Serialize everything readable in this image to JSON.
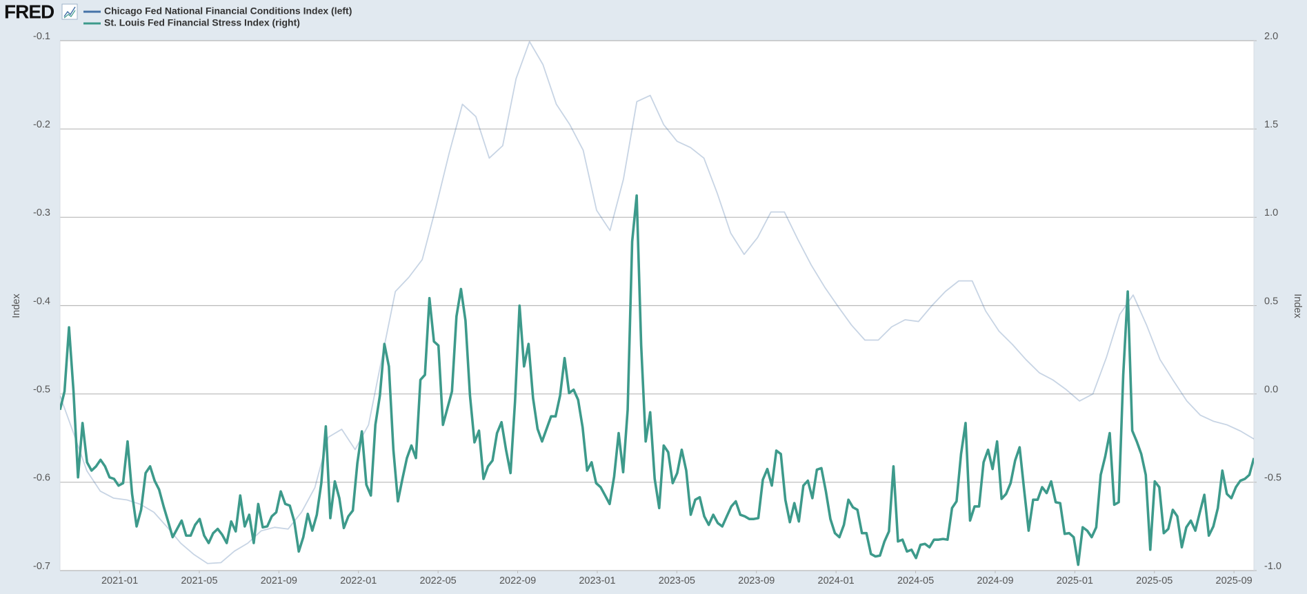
{
  "logo": "FRED",
  "chart_data": {
    "type": "line",
    "legend": "top-left",
    "y_label": "Index",
    "y2_label": "Index",
    "grid": true,
    "xlim": [
      "2020-10",
      "2025-10"
    ],
    "xticks": [
      "2021-01",
      "2021-05",
      "2021-09",
      "2022-01",
      "2022-05",
      "2022-09",
      "2023-01",
      "2023-05",
      "2023-09",
      "2024-01",
      "2024-05",
      "2024-09",
      "2025-01",
      "2025-05",
      "2025-09"
    ],
    "ylim": [
      -0.7,
      -0.1
    ],
    "yticks": [
      -0.7,
      -0.6,
      -0.5,
      -0.4,
      -0.3,
      -0.2,
      -0.1
    ],
    "y2lim": [
      -1.0,
      2.0
    ],
    "y2ticks": [
      {
        "value": -1.0,
        "label": "-1.0"
      },
      {
        "value": -0.5,
        "label": "-0.5"
      },
      {
        "value": 0.0,
        "label": "0.0"
      },
      {
        "value": 0.5,
        "label": "0.5"
      },
      {
        "value": 1.0,
        "label": "1.0"
      },
      {
        "value": 1.5,
        "label": "1.5"
      },
      {
        "value": 2.0,
        "label": "2.0"
      }
    ],
    "series": [
      {
        "name": "Chicago Fed National Financial Conditions Index (left)",
        "color": "#4572a7",
        "axis": "y",
        "values": [
          -0.502,
          -0.544,
          -0.587,
          -0.61,
          -0.618,
          -0.62,
          -0.625,
          -0.634,
          -0.651,
          -0.669,
          -0.682,
          -0.692,
          -0.691,
          -0.678,
          -0.669,
          -0.655,
          -0.651,
          -0.653,
          -0.634,
          -0.606,
          -0.549,
          -0.54,
          -0.563,
          -0.535,
          -0.459,
          -0.384,
          -0.368,
          -0.348,
          -0.29,
          -0.228,
          -0.172,
          -0.186,
          -0.233,
          -0.219,
          -0.143,
          -0.101,
          -0.127,
          -0.172,
          -0.195,
          -0.224,
          -0.292,
          -0.315,
          -0.257,
          -0.169,
          -0.162,
          -0.195,
          -0.214,
          -0.221,
          -0.233,
          -0.273,
          -0.318,
          -0.342,
          -0.323,
          -0.294,
          -0.294,
          -0.325,
          -0.354,
          -0.379,
          -0.401,
          -0.422,
          -0.439,
          -0.439,
          -0.424,
          -0.416,
          -0.418,
          -0.4,
          -0.384,
          -0.372,
          -0.372,
          -0.406,
          -0.429,
          -0.444,
          -0.461,
          -0.476,
          -0.484,
          -0.495,
          -0.508,
          -0.5,
          -0.459,
          -0.41,
          -0.388,
          -0.422,
          -0.461,
          -0.485,
          -0.508,
          -0.524,
          -0.531,
          -0.535,
          -0.542,
          -0.551
        ]
      },
      {
        "name": "St. Louis Fed Financial Stress Index (right)",
        "color": "#3d9a8b",
        "axis": "y2",
        "values": [
          -0.09,
          0.014,
          0.377,
          0.014,
          -0.472,
          -0.165,
          -0.387,
          -0.434,
          -0.41,
          -0.373,
          -0.41,
          -0.472,
          -0.481,
          -0.519,
          -0.505,
          -0.269,
          -0.566,
          -0.75,
          -0.656,
          -0.448,
          -0.41,
          -0.491,
          -0.542,
          -0.637,
          -0.722,
          -0.811,
          -0.764,
          -0.717,
          -0.802,
          -0.802,
          -0.741,
          -0.708,
          -0.802,
          -0.844,
          -0.788,
          -0.764,
          -0.797,
          -0.844,
          -0.722,
          -0.778,
          -0.575,
          -0.75,
          -0.684,
          -0.844,
          -0.623,
          -0.755,
          -0.75,
          -0.693,
          -0.67,
          -0.552,
          -0.623,
          -0.632,
          -0.722,
          -0.892,
          -0.811,
          -0.679,
          -0.774,
          -0.684,
          -0.505,
          -0.184,
          -0.703,
          -0.495,
          -0.59,
          -0.759,
          -0.693,
          -0.66,
          -0.392,
          -0.212,
          -0.514,
          -0.575,
          -0.175,
          -0.009,
          0.283,
          0.156,
          -0.316,
          -0.608,
          -0.481,
          -0.363,
          -0.292,
          -0.363,
          0.08,
          0.108,
          0.542,
          0.297,
          0.274,
          -0.175,
          -0.08,
          0.014,
          0.439,
          0.594,
          0.415,
          -0.009,
          -0.274,
          -0.208,
          -0.481,
          -0.41,
          -0.377,
          -0.222,
          -0.16,
          -0.316,
          -0.448,
          -0.042,
          0.5,
          0.156,
          0.283,
          -0.024,
          -0.198,
          -0.269,
          -0.198,
          -0.127,
          -0.127,
          -0.009,
          0.203,
          0.005,
          0.024,
          -0.033,
          -0.189,
          -0.434,
          -0.387,
          -0.505,
          -0.528,
          -0.575,
          -0.623,
          -0.467,
          -0.222,
          -0.443,
          -0.09,
          0.863,
          1.123,
          0.274,
          -0.269,
          -0.104,
          -0.481,
          -0.646,
          -0.292,
          -0.33,
          -0.505,
          -0.448,
          -0.316,
          -0.434,
          -0.684,
          -0.599,
          -0.585,
          -0.693,
          -0.741,
          -0.684,
          -0.731,
          -0.75,
          -0.693,
          -0.637,
          -0.608,
          -0.684,
          -0.693,
          -0.708,
          -0.708,
          -0.703,
          -0.486,
          -0.425,
          -0.519,
          -0.321,
          -0.34,
          -0.599,
          -0.726,
          -0.618,
          -0.722,
          -0.519,
          -0.491,
          -0.59,
          -0.429,
          -0.42,
          -0.552,
          -0.708,
          -0.788,
          -0.811,
          -0.741,
          -0.599,
          -0.642,
          -0.656,
          -0.788,
          -0.788,
          -0.906,
          -0.92,
          -0.915,
          -0.835,
          -0.778,
          -0.41,
          -0.835,
          -0.825,
          -0.892,
          -0.882,
          -0.929,
          -0.854,
          -0.849,
          -0.868,
          -0.825,
          -0.825,
          -0.821,
          -0.825,
          -0.646,
          -0.608,
          -0.34,
          -0.165,
          -0.717,
          -0.637,
          -0.637,
          -0.387,
          -0.316,
          -0.425,
          -0.269,
          -0.594,
          -0.566,
          -0.505,
          -0.377,
          -0.302,
          -0.542,
          -0.774,
          -0.599,
          -0.599,
          -0.528,
          -0.561,
          -0.495,
          -0.613,
          -0.618,
          -0.792,
          -0.788,
          -0.811,
          -0.967,
          -0.755,
          -0.774,
          -0.811,
          -0.755,
          -0.458,
          -0.354,
          -0.222,
          -0.627,
          -0.613,
          0.108,
          0.58,
          -0.208,
          -0.269,
          -0.34,
          -0.458,
          -0.882,
          -0.495,
          -0.528,
          -0.788,
          -0.764,
          -0.656,
          -0.693,
          -0.868,
          -0.755,
          -0.717,
          -0.774,
          -0.67,
          -0.571,
          -0.802,
          -0.75,
          -0.646,
          -0.434,
          -0.566,
          -0.59,
          -0.528,
          -0.491,
          -0.481,
          -0.458,
          -0.363
        ]
      }
    ]
  }
}
